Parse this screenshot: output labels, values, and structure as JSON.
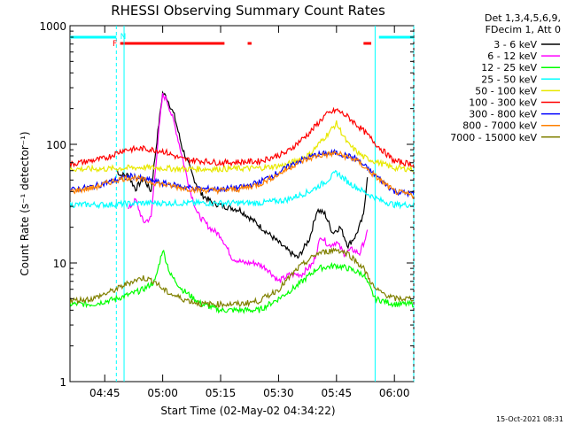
{
  "chart_data": {
    "type": "line",
    "title": "RHESSI Observing Summary Count Rates",
    "xlabel": "Start Time (02-May-02 04:34:22)",
    "ylabel": "Count Rate (s⁻¹ detector⁻¹)",
    "y_scale": "log",
    "ylim": [
      1,
      1000
    ],
    "xlim": [
      "04:36",
      "06:05"
    ],
    "x_tick_labels": [
      "04:45",
      "05:00",
      "05:15",
      "05:30",
      "05:45",
      "06:00"
    ],
    "y_tick_labels": [
      "1",
      "10",
      "100",
      "1000"
    ],
    "grid": false,
    "legend_placement": "right, outside plot",
    "legend_header": [
      "Det 1,3,4,5,6,9,",
      "FDecim 1, Att 0"
    ],
    "series": [
      {
        "name": "3 - 6 keV",
        "color": "#000000",
        "x": [
          "04:48",
          "04:49",
          "04:51",
          "04:53",
          "04:55",
          "04:57",
          "04:59",
          "05:00",
          "05:01",
          "05:03",
          "05:05",
          "05:08",
          "05:10",
          "05:13",
          "05:16",
          "05:20",
          "05:24",
          "05:28",
          "05:32",
          "05:35",
          "05:38",
          "05:40",
          "05:42",
          "05:44",
          "05:46",
          "05:48",
          "05:50",
          "05:52",
          "05:53"
        ],
        "values": [
          62,
          55,
          55,
          42,
          52,
          40,
          150,
          270,
          250,
          175,
          95,
          52,
          38,
          32,
          30,
          28,
          22,
          17,
          13,
          11,
          16,
          28,
          26,
          18,
          20,
          14,
          17,
          25,
          55
        ]
      },
      {
        "name": "6 - 12 keV",
        "color": "#ff00ff",
        "x": [
          "04:51",
          "04:53",
          "04:55",
          "04:57",
          "04:59",
          "05:00",
          "05:01",
          "05:03",
          "05:05",
          "05:07",
          "05:09",
          "05:12",
          "05:15",
          "05:18",
          "05:21",
          "05:24",
          "05:27",
          "05:30",
          "05:33",
          "05:36",
          "05:39",
          "05:41",
          "05:43",
          "05:45",
          "05:47",
          "05:49",
          "05:51",
          "05:53"
        ],
        "values": [
          28,
          34,
          22,
          24,
          130,
          260,
          240,
          150,
          80,
          42,
          26,
          20,
          17,
          11,
          10,
          10,
          9,
          7,
          8,
          8,
          10,
          17,
          14,
          15,
          12,
          13,
          12,
          18
        ]
      },
      {
        "name": "12 - 25 keV",
        "color": "#00ff00",
        "x": [
          "04:36",
          "04:42",
          "04:48",
          "04:52",
          "04:55",
          "04:58",
          "05:00",
          "05:02",
          "05:05",
          "05:10",
          "05:15",
          "05:20",
          "05:25",
          "05:30",
          "05:35",
          "05:40",
          "05:45",
          "05:48",
          "05:52",
          "05:55",
          "06:00",
          "06:05"
        ],
        "values": [
          4.5,
          4.5,
          5,
          5.5,
          6,
          7,
          13,
          8,
          6,
          4.5,
          4,
          4,
          4,
          5,
          6.5,
          9,
          9.5,
          9,
          8,
          5,
          4.5,
          4.5
        ]
      },
      {
        "name": "25 - 50 keV",
        "color": "#00ffff",
        "x": [
          "04:36",
          "04:45",
          "04:55",
          "05:05",
          "05:15",
          "05:25",
          "05:32",
          "05:38",
          "05:42",
          "05:45",
          "05:48",
          "05:52",
          "05:56",
          "06:00",
          "06:05"
        ],
        "values": [
          31,
          31,
          32,
          32,
          32,
          32,
          34,
          40,
          48,
          58,
          48,
          40,
          34,
          31,
          31
        ]
      },
      {
        "name": "50 - 100 keV",
        "color": "#e8e800",
        "x": [
          "04:36",
          "04:45",
          "04:55",
          "05:05",
          "05:15",
          "05:25",
          "05:32",
          "05:38",
          "05:42",
          "05:45",
          "05:48",
          "05:52",
          "05:56",
          "06:00",
          "06:05"
        ],
        "values": [
          62,
          62,
          64,
          62,
          62,
          63,
          67,
          82,
          115,
          150,
          100,
          78,
          70,
          63,
          62
        ]
      },
      {
        "name": "100 - 300 keV",
        "color": "#ff0000",
        "x": [
          "04:36",
          "04:45",
          "04:50",
          "04:55",
          "05:00",
          "05:05",
          "05:15",
          "05:25",
          "05:32",
          "05:38",
          "05:42",
          "05:45",
          "05:48",
          "05:52",
          "05:56",
          "06:00",
          "06:05"
        ],
        "values": [
          68,
          76,
          90,
          92,
          88,
          75,
          70,
          72,
          85,
          125,
          175,
          195,
          170,
          130,
          95,
          72,
          68
        ]
      },
      {
        "name": "300 - 800 keV",
        "color": "#0000ff",
        "x": [
          "04:36",
          "04:42",
          "04:48",
          "04:52",
          "04:56",
          "05:00",
          "05:05",
          "05:10",
          "05:15",
          "05:20",
          "05:25",
          "05:30",
          "05:35",
          "05:40",
          "05:45",
          "05:50",
          "05:55",
          "06:00",
          "06:05"
        ],
        "values": [
          41,
          44,
          50,
          54,
          50,
          47,
          44,
          42,
          42,
          43,
          48,
          58,
          72,
          82,
          85,
          76,
          55,
          40,
          38
        ]
      },
      {
        "name": "800 - 7000 keV",
        "color": "#ff8000",
        "x": [
          "04:36",
          "04:42",
          "04:48",
          "04:52",
          "04:56",
          "05:00",
          "05:05",
          "05:10",
          "05:15",
          "05:20",
          "05:25",
          "05:30",
          "05:35",
          "05:40",
          "05:45",
          "05:50",
          "05:55",
          "06:00",
          "06:05"
        ],
        "values": [
          40,
          43,
          50,
          53,
          49,
          46,
          43,
          41,
          41,
          42,
          46,
          56,
          70,
          80,
          84,
          74,
          54,
          40,
          37
        ]
      },
      {
        "name": "7000 - 15000 keV",
        "color": "#808000",
        "x": [
          "04:36",
          "04:42",
          "04:48",
          "04:52",
          "04:55",
          "04:58",
          "05:00",
          "05:02",
          "05:05",
          "05:10",
          "05:15",
          "05:20",
          "05:25",
          "05:30",
          "05:35",
          "05:40",
          "05:45",
          "05:48",
          "05:52",
          "05:55",
          "06:00",
          "06:05"
        ],
        "values": [
          4.8,
          5,
          6,
          7,
          7.5,
          7,
          6,
          5.5,
          5,
          4.5,
          4.5,
          4.5,
          4.8,
          6,
          9,
          12,
          13,
          12,
          9,
          6,
          5,
          5
        ]
      }
    ],
    "annotations": {
      "flags_top": [
        "F",
        "N"
      ],
      "attenuator_bar_color": "#ff0000",
      "night_bar_color": "#00ffff",
      "footer_timestamp": "15-Oct-2021 08:31"
    }
  }
}
